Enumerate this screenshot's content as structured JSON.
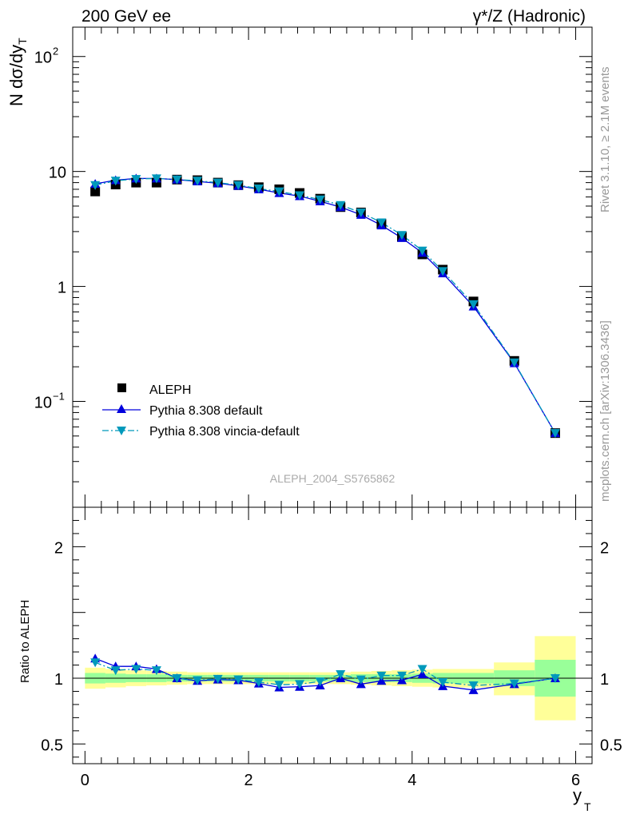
{
  "header": {
    "left": "200 GeV ee",
    "right": "γ*/Z (Hadronic)"
  },
  "side_text": {
    "rivet": "Rivet 3.1.10, ≥ 2.1M events",
    "mcplots": "mcplots.cern.ch [arXiv:1306.3436]"
  },
  "watermark": "ALEPH_2004_S5765862",
  "colors": {
    "data": "#000000",
    "default": "#0000dd",
    "vincia": "#0099bb",
    "band_inner": "#99ff99",
    "band_outer": "#ffff99"
  },
  "chart_data": [
    {
      "type": "scatter",
      "ylabel": "N dσ/dy_T",
      "yscale": "log",
      "ylim": [
        0.012,
        180
      ],
      "xlim": [
        -0.15,
        6.2
      ],
      "ytick_labels": [
        "10^-1",
        "1",
        "10",
        "10^2"
      ],
      "legend_position": "lower-left",
      "series": [
        {
          "name": "ALEPH",
          "marker": "square",
          "x": [
            0.125,
            0.375,
            0.625,
            0.875,
            1.125,
            1.375,
            1.625,
            1.875,
            2.125,
            2.375,
            2.625,
            2.875,
            3.125,
            3.375,
            3.625,
            3.875,
            4.125,
            4.375,
            4.75,
            5.25,
            5.75
          ],
          "y": [
            6.7,
            7.7,
            8.0,
            8.0,
            8.5,
            8.4,
            8.0,
            7.6,
            7.3,
            7.0,
            6.5,
            5.8,
            4.9,
            4.4,
            3.5,
            2.7,
            1.9,
            1.4,
            0.74,
            0.225,
            0.053
          ]
        },
        {
          "name": "Pythia 8.308 default",
          "marker": "triangle-up",
          "line": "solid",
          "x": [
            0.125,
            0.375,
            0.625,
            0.875,
            1.125,
            1.375,
            1.625,
            1.875,
            2.125,
            2.375,
            2.625,
            2.875,
            3.125,
            3.375,
            3.625,
            3.875,
            4.125,
            4.375,
            4.75,
            5.25,
            5.75
          ],
          "y": [
            7.8,
            8.4,
            8.7,
            8.7,
            8.5,
            8.2,
            7.9,
            7.5,
            7.0,
            6.5,
            6.1,
            5.5,
            4.9,
            4.2,
            3.4,
            2.64,
            1.96,
            1.3,
            0.67,
            0.215,
            0.053
          ]
        },
        {
          "name": "Pythia 8.308 vincia-default",
          "marker": "triangle-down",
          "line": "dashdot",
          "x": [
            0.125,
            0.375,
            0.625,
            0.875,
            1.125,
            1.375,
            1.625,
            1.875,
            2.125,
            2.375,
            2.625,
            2.875,
            3.125,
            3.375,
            3.625,
            3.875,
            4.125,
            4.375,
            4.75,
            5.25,
            5.75
          ],
          "y": [
            7.6,
            8.3,
            8.6,
            8.7,
            8.5,
            8.3,
            8.0,
            7.6,
            7.1,
            6.7,
            6.2,
            5.7,
            5.1,
            4.4,
            3.6,
            2.8,
            2.05,
            1.36,
            0.7,
            0.218,
            0.053
          ]
        }
      ]
    },
    {
      "type": "line",
      "ylabel": "Ratio to ALEPH",
      "xlabel": "y_T",
      "ylim": [
        0.35,
        2.3
      ],
      "xlim": [
        -0.15,
        6.2
      ],
      "ytick_labels": [
        "0.5",
        "1",
        "2"
      ],
      "xtick_labels": [
        "0",
        "2",
        "4",
        "6"
      ],
      "bands": [
        {
          "x0": 0.0,
          "x1": 0.25,
          "inner": [
            0.96,
            1.04
          ],
          "outer": [
            0.92,
            1.08
          ]
        },
        {
          "x0": 0.25,
          "x1": 0.5,
          "inner": [
            0.965,
            1.035
          ],
          "outer": [
            0.93,
            1.07
          ]
        },
        {
          "x0": 0.5,
          "x1": 0.75,
          "inner": [
            0.97,
            1.03
          ],
          "outer": [
            0.94,
            1.06
          ]
        },
        {
          "x0": 0.75,
          "x1": 1.0,
          "inner": [
            0.97,
            1.03
          ],
          "outer": [
            0.945,
            1.055
          ]
        },
        {
          "x0": 1.0,
          "x1": 1.25,
          "inner": [
            0.975,
            1.025
          ],
          "outer": [
            0.95,
            1.05
          ]
        },
        {
          "x0": 1.25,
          "x1": 1.5,
          "inner": [
            0.975,
            1.025
          ],
          "outer": [
            0.955,
            1.045
          ]
        },
        {
          "x0": 1.5,
          "x1": 1.75,
          "inner": [
            0.975,
            1.025
          ],
          "outer": [
            0.955,
            1.045
          ]
        },
        {
          "x0": 1.75,
          "x1": 2.0,
          "inner": [
            0.975,
            1.025
          ],
          "outer": [
            0.955,
            1.045
          ]
        },
        {
          "x0": 2.0,
          "x1": 2.25,
          "inner": [
            0.975,
            1.025
          ],
          "outer": [
            0.955,
            1.045
          ]
        },
        {
          "x0": 2.25,
          "x1": 2.5,
          "inner": [
            0.975,
            1.025
          ],
          "outer": [
            0.955,
            1.045
          ]
        },
        {
          "x0": 2.5,
          "x1": 2.75,
          "inner": [
            0.975,
            1.025
          ],
          "outer": [
            0.955,
            1.045
          ]
        },
        {
          "x0": 2.75,
          "x1": 3.0,
          "inner": [
            0.975,
            1.025
          ],
          "outer": [
            0.955,
            1.045
          ]
        },
        {
          "x0": 3.0,
          "x1": 3.25,
          "inner": [
            0.975,
            1.025
          ],
          "outer": [
            0.955,
            1.045
          ]
        },
        {
          "x0": 3.25,
          "x1": 3.5,
          "inner": [
            0.97,
            1.03
          ],
          "outer": [
            0.95,
            1.05
          ]
        },
        {
          "x0": 3.5,
          "x1": 3.75,
          "inner": [
            0.97,
            1.03
          ],
          "outer": [
            0.945,
            1.055
          ]
        },
        {
          "x0": 3.75,
          "x1": 4.0,
          "inner": [
            0.97,
            1.03
          ],
          "outer": [
            0.94,
            1.06
          ]
        },
        {
          "x0": 4.0,
          "x1": 4.25,
          "inner": [
            0.965,
            1.035
          ],
          "outer": [
            0.935,
            1.065
          ]
        },
        {
          "x0": 4.25,
          "x1": 4.5,
          "inner": [
            0.96,
            1.04
          ],
          "outer": [
            0.93,
            1.07
          ]
        },
        {
          "x0": 4.5,
          "x1": 5.0,
          "inner": [
            0.96,
            1.04
          ],
          "outer": [
            0.93,
            1.07
          ]
        },
        {
          "x0": 5.0,
          "x1": 5.5,
          "inner": [
            0.94,
            1.06
          ],
          "outer": [
            0.87,
            1.12
          ]
        },
        {
          "x0": 5.5,
          "x1": 6.0,
          "inner": [
            0.86,
            1.14
          ],
          "outer": [
            0.68,
            1.32
          ]
        }
      ],
      "series": [
        {
          "name": "Pythia 8.308 default",
          "x": [
            0.125,
            0.375,
            0.625,
            0.875,
            1.125,
            1.375,
            1.625,
            1.875,
            2.125,
            2.375,
            2.625,
            2.875,
            3.125,
            3.375,
            3.625,
            3.875,
            4.125,
            4.375,
            4.75,
            5.25,
            5.75
          ],
          "y": [
            1.15,
            1.09,
            1.09,
            1.07,
            1.0,
            0.98,
            0.99,
            0.985,
            0.96,
            0.93,
            0.935,
            0.945,
            1.0,
            0.955,
            0.98,
            0.985,
            1.03,
            0.94,
            0.91,
            0.955,
            1.0
          ]
        },
        {
          "name": "Pythia 8.308 vincia-default",
          "x": [
            0.125,
            0.375,
            0.625,
            0.875,
            1.125,
            1.375,
            1.625,
            1.875,
            2.125,
            2.375,
            2.625,
            2.875,
            3.125,
            3.375,
            3.625,
            3.875,
            4.125,
            4.375,
            4.75,
            5.25,
            5.75
          ],
          "y": [
            1.12,
            1.06,
            1.07,
            1.06,
            1.0,
            0.985,
            0.995,
            0.99,
            0.97,
            0.95,
            0.955,
            0.975,
            1.03,
            0.99,
            1.02,
            1.02,
            1.07,
            0.97,
            0.945,
            0.96,
            1.0
          ]
        }
      ]
    }
  ]
}
